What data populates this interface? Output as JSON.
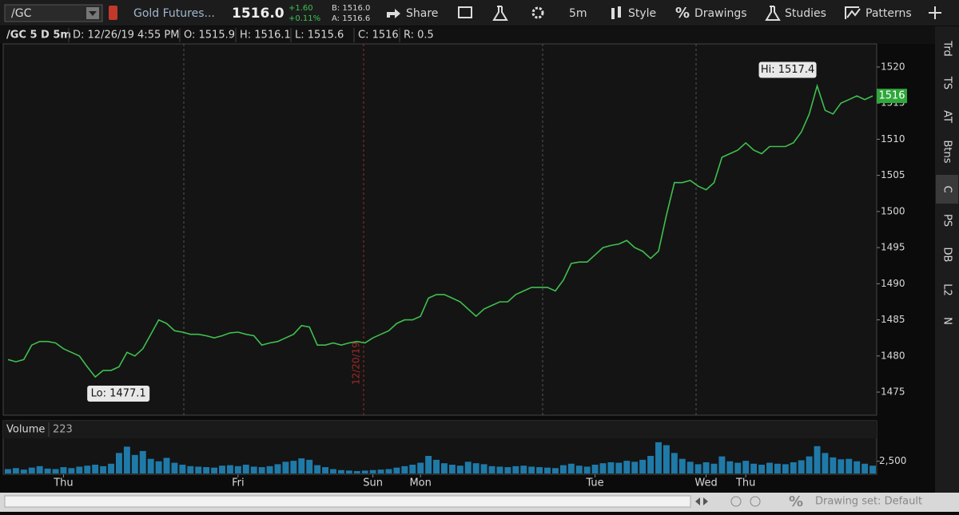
{
  "toolbar": {
    "symbol": "/GC",
    "description": "Gold Futures...",
    "last": "1516.0",
    "change": "+1.60",
    "change_pct": "+0.11%",
    "bid": "B: 1516.0",
    "ask": "A: 1516.6",
    "share": "Share",
    "interval": "5m",
    "style": "Style",
    "drawings": "Drawings",
    "studies": "Studies",
    "patterns": "Patterns"
  },
  "chart_header": {
    "title": "/GC 5 D 5m",
    "fields": [
      "D: 12/26/19 4:55 PM",
      "O: 1515.9",
      "H: 1516.1",
      "L: 1515.6",
      "C: 1516",
      "R: 0.5"
    ]
  },
  "side_tabs": [
    "Trd",
    "TS",
    "AT",
    "Btns",
    "C",
    "PS",
    "DB",
    "L2",
    "N"
  ],
  "status_bar": {
    "drawing_set": "Drawing set: Default"
  },
  "chart_data": [
    {
      "type": "line",
      "color": "#3fbf4f",
      "values": [
        1479.5,
        1479.2,
        1479.5,
        1481.5,
        1482,
        1482,
        1481.8,
        1481,
        1480.5,
        1480,
        1478.5,
        1477.1,
        1478,
        1478,
        1478.5,
        1480.5,
        1480,
        1481,
        1483,
        1485,
        1484.5,
        1483.5,
        1483.3,
        1483,
        1483,
        1482.8,
        1482.5,
        1482.8,
        1483.2,
        1483.3,
        1483,
        1482.8,
        1481.5,
        1481.8,
        1482,
        1482.5,
        1483,
        1484.2,
        1484,
        1481.5,
        1481.5,
        1481.8,
        1481.5,
        1481.8,
        1482,
        1481.8,
        1482.5,
        1483,
        1483.5,
        1484.5,
        1485,
        1485,
        1485.5,
        1488,
        1488.5,
        1488.5,
        1488,
        1487.5,
        1486.5,
        1485.5,
        1486.5,
        1487,
        1487.5,
        1487.5,
        1488.5,
        1489,
        1489.5,
        1489.5,
        1489.5,
        1489,
        1490.5,
        1492.8,
        1493,
        1493,
        1494,
        1495,
        1495.3,
        1495.5,
        1496,
        1495,
        1494.5,
        1493.5,
        1494.5,
        1499.5,
        1504,
        1504,
        1504.3,
        1503.5,
        1503,
        1504,
        1507.5,
        1508,
        1508.5,
        1509.5,
        1508.5,
        1508,
        1509,
        1509,
        1509,
        1509.5,
        1511,
        1513.5,
        1517.4,
        1514,
        1513.5,
        1515,
        1515.5,
        1516,
        1515.5,
        1516
      ],
      "ylim": [
        1471.8,
        1523.2
      ],
      "yticks": [
        1475,
        1480,
        1485,
        1490,
        1495,
        1500,
        1505,
        1510,
        1515,
        1520
      ],
      "grid": false,
      "xticks": [
        {
          "value": 7,
          "label": "Thu"
        },
        {
          "value": 29,
          "label": "Fri"
        },
        {
          "value": 46,
          "label": "Sun"
        },
        {
          "value": 52,
          "label": "Mon"
        },
        {
          "value": 74,
          "label": "Tue"
        },
        {
          "value": 88,
          "label": "Wed"
        },
        {
          "value": 93,
          "label": "Thu"
        }
      ],
      "annotations": {
        "high": "Hi: 1517.4",
        "low": "Lo: 1477.1",
        "session_date": "12/20/19"
      },
      "last_price": 1516
    },
    {
      "type": "bar",
      "title": "Volume",
      "last_volume": 223,
      "color": "#1f7aa8",
      "values": [
        900,
        1100,
        800,
        1200,
        1500,
        1000,
        900,
        1300,
        1100,
        1400,
        1600,
        1800,
        1500,
        2000,
        4200,
        5500,
        3800,
        4600,
        3000,
        2500,
        3200,
        2200,
        1800,
        1500,
        1400,
        1300,
        1200,
        1600,
        1700,
        1500,
        1800,
        1400,
        1300,
        1500,
        1900,
        2400,
        2600,
        3100,
        2800,
        1700,
        1300,
        900,
        700,
        600,
        500,
        600,
        700,
        800,
        900,
        1200,
        1500,
        1800,
        2200,
        3600,
        2800,
        2100,
        1800,
        1600,
        2400,
        2100,
        1900,
        1500,
        1400,
        1300,
        1500,
        1600,
        1400,
        1300,
        1200,
        1100,
        1700,
        2000,
        1600,
        1400,
        1800,
        2100,
        2300,
        2200,
        2600,
        2400,
        2800,
        3600,
        6400,
        5800,
        4200,
        3000,
        2400,
        1900,
        2300,
        2000,
        3500,
        2500,
        2200,
        2600,
        2000,
        1800,
        2200,
        2000,
        1900,
        2300,
        2700,
        3500,
        5600,
        4200,
        3300,
        2900,
        3000,
        2500,
        2000,
        1600
      ],
      "ylim": [
        0,
        7200
      ],
      "yticks": [
        {
          "value": 2500,
          "label": "2,500"
        }
      ]
    }
  ]
}
